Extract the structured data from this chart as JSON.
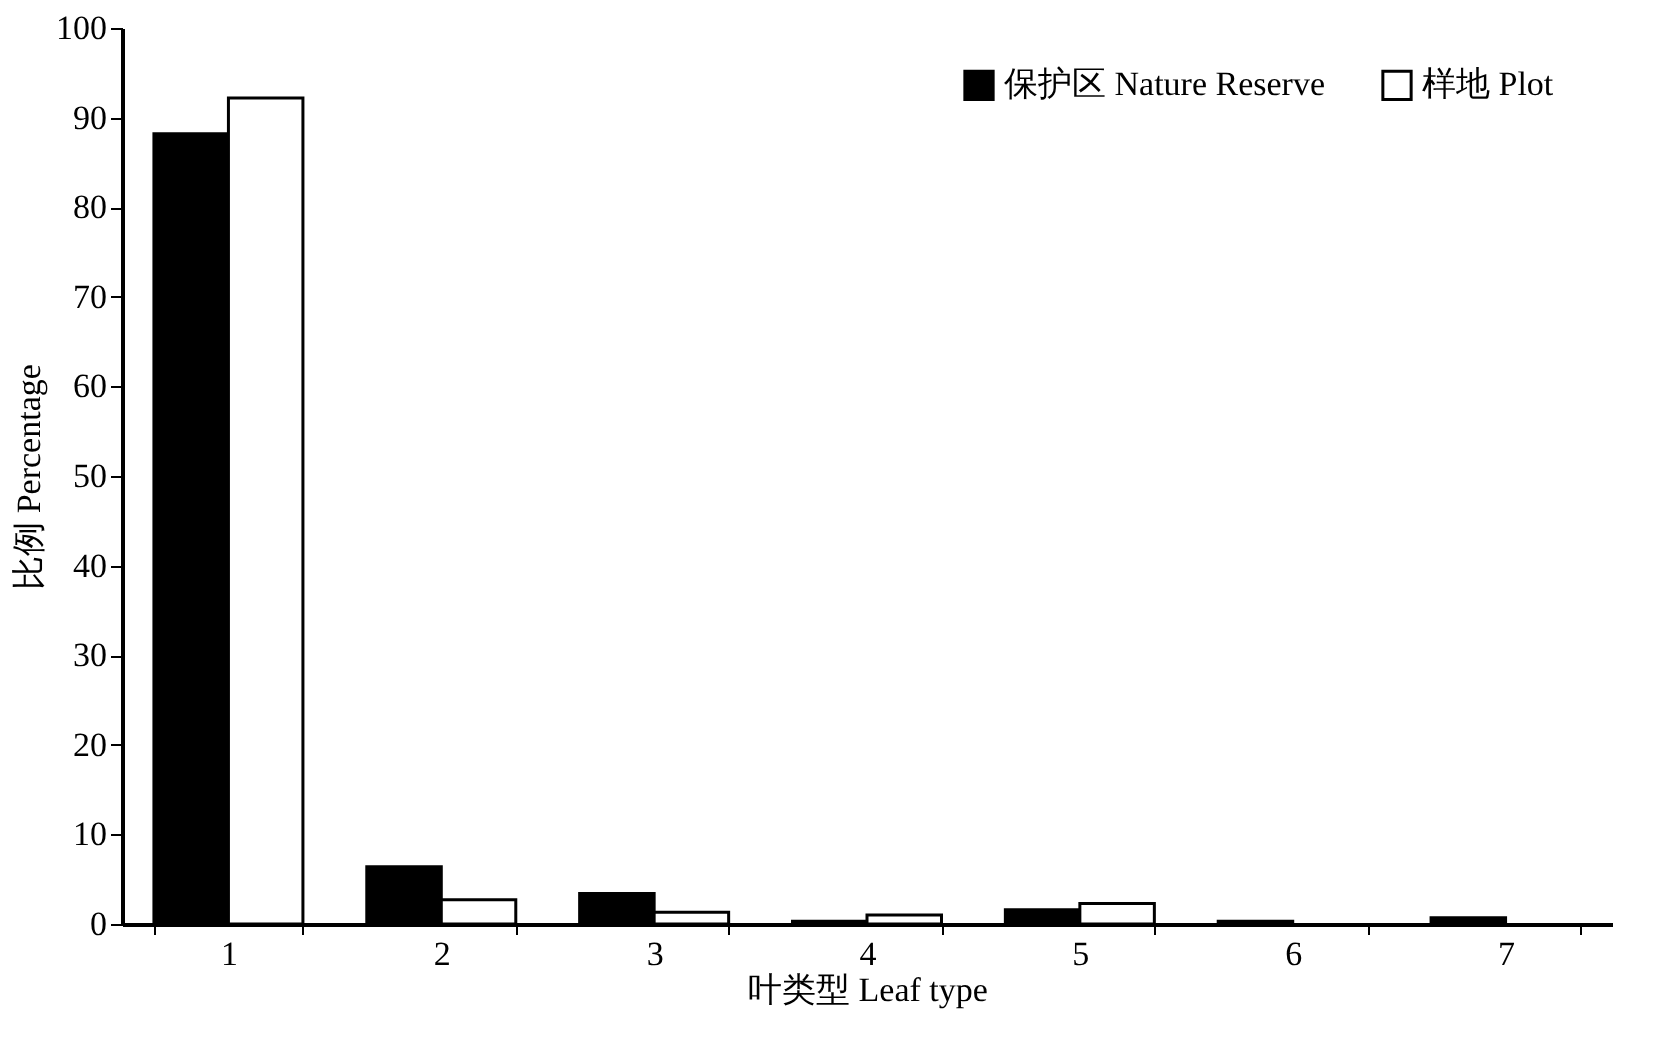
{
  "chart_data": {
    "type": "bar",
    "xlabel": "叶类型 Leaf type",
    "ylabel": "比例 Percentage",
    "categories": [
      "1",
      "2",
      "3",
      "4",
      "5",
      "6",
      "7"
    ],
    "series": [
      {
        "name": "保护区 Nature Reserve",
        "color": "#000000",
        "values": [
          88.2,
          6.4,
          3.4,
          0.3,
          1.6,
          0.3,
          0.7
        ]
      },
      {
        "name": "样地 Plot",
        "color": "#ffffff",
        "values": [
          92.2,
          2.7,
          1.3,
          1.0,
          2.3,
          0,
          0
        ]
      }
    ],
    "ylim": [
      0,
      100
    ],
    "yticks": [
      0,
      10,
      20,
      30,
      40,
      50,
      60,
      70,
      80,
      90,
      100
    ],
    "grid": false,
    "legend": "top right"
  }
}
